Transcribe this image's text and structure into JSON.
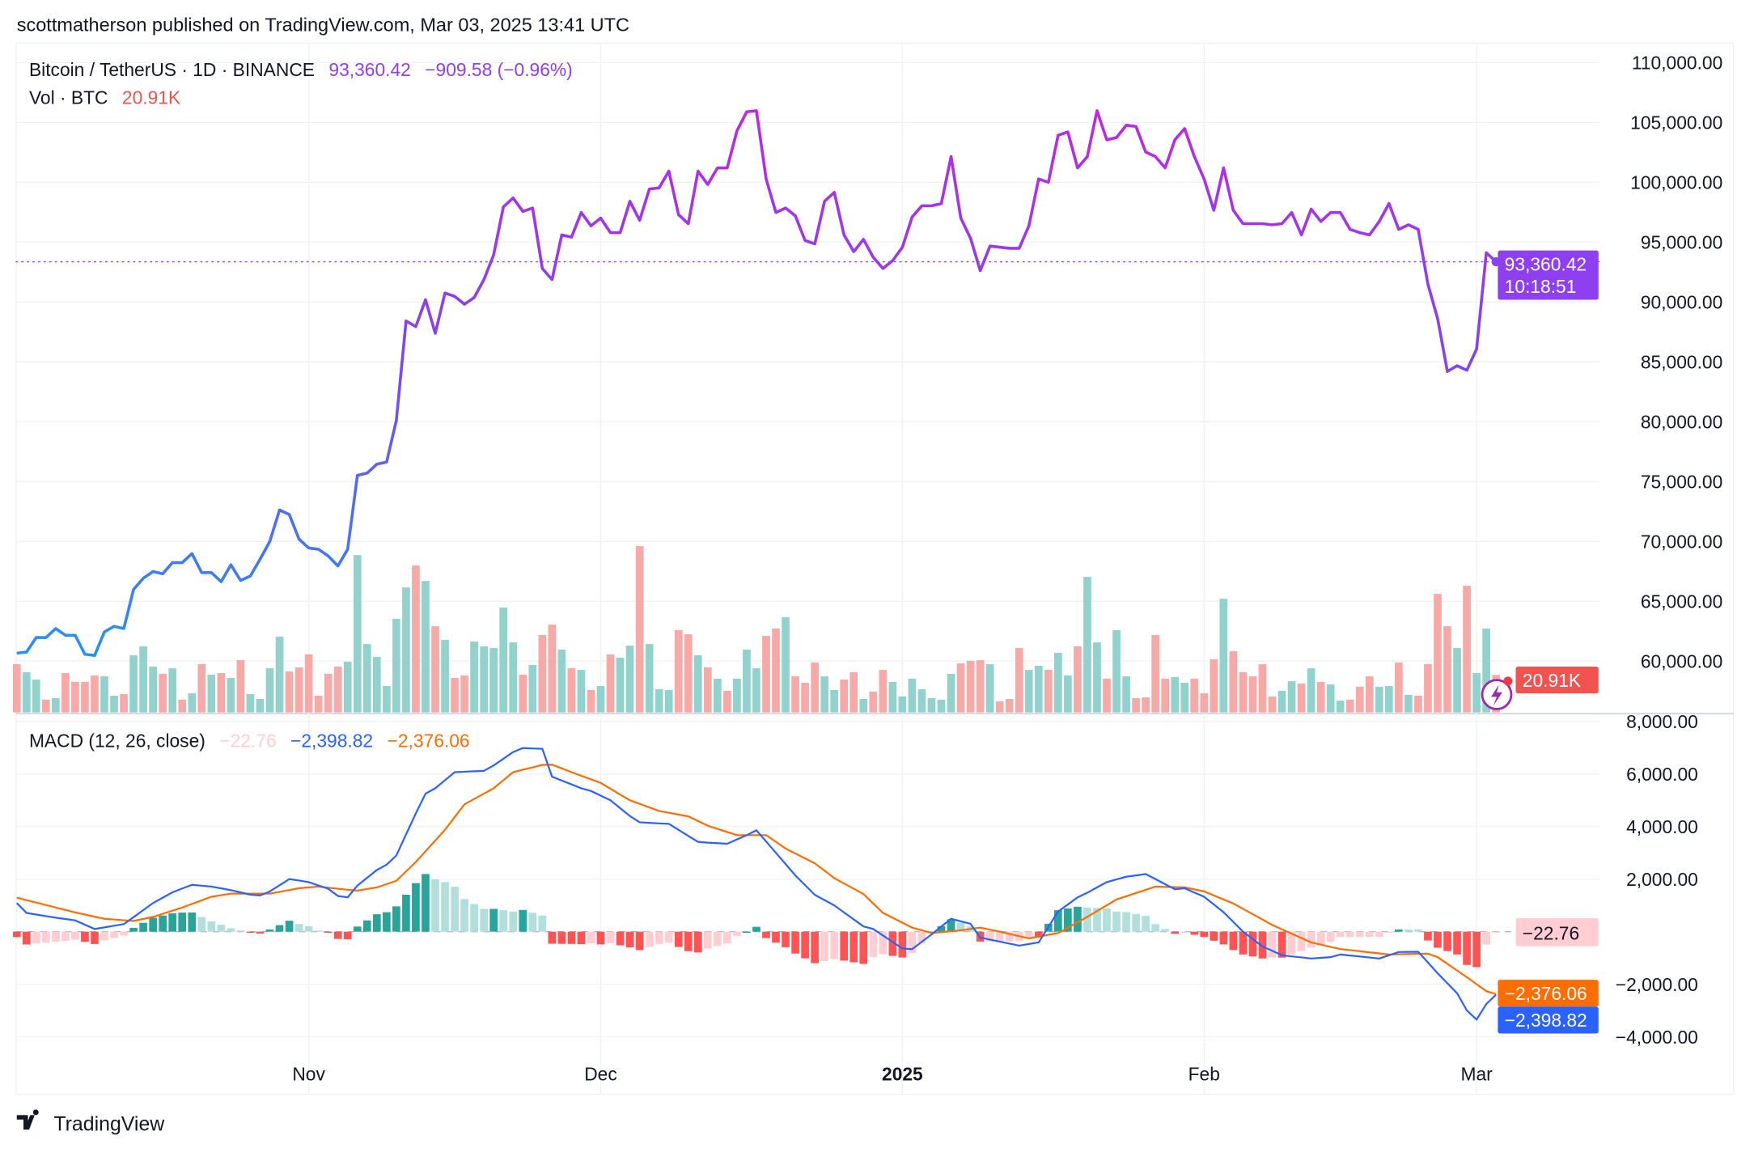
{
  "header": {
    "published": "scottmatherson published on TradingView.com, Mar 03, 2025 13:41 UTC"
  },
  "legend": {
    "symbol": "Bitcoin / TetherUS · 1D · BINANCE",
    "last": "93,360.42",
    "change": "−909.58 (−0.96%)",
    "volume_label": "Vol · BTC",
    "volume_value": "20.91K",
    "macd_label": "MACD (12, 26, close)",
    "macd_hist": "−22.76",
    "macd_line": "−2,398.82",
    "macd_signal": "−2,376.06"
  },
  "badges": {
    "price": "93,360.42",
    "countdown": "10:18:51",
    "volume": "20.91K",
    "hist": "−22.76",
    "signal": "−2,376.06",
    "macd": "−2,398.82"
  },
  "footer": {
    "brand": "TradingView"
  },
  "colors": {
    "price_low": "#2196F3",
    "price_mid": "#7E45F2",
    "price_high": "#C026E6",
    "price_badge": "#8E3FF0",
    "volume_up": "#92D2CC",
    "volume_down": "#F7A9A7",
    "volume_badge": "#F05350",
    "macd_line": "#2962FF",
    "signal_line": "#FF6D00",
    "hist_up_strong": "#26A69A",
    "hist_up_weak": "#B2DFDB",
    "hist_down_strong": "#FF5252",
    "hist_down_weak": "#FFCDD2"
  },
  "chart_data": {
    "type": "line",
    "symbol": "BTCUSDT",
    "interval": "1D",
    "price_axis": {
      "tick_labels": [
        "110,000.00",
        "105,000.00",
        "100,000.00",
        "95,000.00",
        "90,000.00",
        "85,000.00",
        "80,000.00",
        "75,000.00",
        "70,000.00",
        "65,000.00",
        "60,000.00"
      ]
    },
    "macd_axis": {
      "tick_labels": [
        "8,000.00",
        "6,000.00",
        "4,000.00",
        "2,000.00",
        "−2,000.00",
        "−4,000.00"
      ]
    },
    "time_axis": [
      {
        "label": "Nov",
        "date": "2024-11-01",
        "bold": false
      },
      {
        "label": "Dec",
        "date": "2024-12-01",
        "bold": false
      },
      {
        "label": "2025",
        "date": "2025-01-01",
        "bold": true
      },
      {
        "label": "Feb",
        "date": "2025-02-01",
        "bold": false
      },
      {
        "label": "Mar",
        "date": "2025-03-01",
        "bold": false
      }
    ],
    "grid": true,
    "dates": [
      "2024-10-02",
      "2024-10-03",
      "2024-10-04",
      "2024-10-05",
      "2024-10-06",
      "2024-10-07",
      "2024-10-08",
      "2024-10-09",
      "2024-10-10",
      "2024-10-11",
      "2024-10-12",
      "2024-10-13",
      "2024-10-14",
      "2024-10-15",
      "2024-10-16",
      "2024-10-17",
      "2024-10-18",
      "2024-10-19",
      "2024-10-20",
      "2024-10-21",
      "2024-10-22",
      "2024-10-23",
      "2024-10-24",
      "2024-10-25",
      "2024-10-26",
      "2024-10-27",
      "2024-10-28",
      "2024-10-29",
      "2024-10-30",
      "2024-10-31",
      "2024-11-01",
      "2024-11-02",
      "2024-11-03",
      "2024-11-04",
      "2024-11-05",
      "2024-11-06",
      "2024-11-07",
      "2024-11-08",
      "2024-11-09",
      "2024-11-10",
      "2024-11-11",
      "2024-11-12",
      "2024-11-13",
      "2024-11-14",
      "2024-11-15",
      "2024-11-16",
      "2024-11-17",
      "2024-11-18",
      "2024-11-19",
      "2024-11-20",
      "2024-11-21",
      "2024-11-22",
      "2024-11-23",
      "2024-11-24",
      "2024-11-25",
      "2024-11-26",
      "2024-11-27",
      "2024-11-28",
      "2024-11-29",
      "2024-11-30",
      "2024-12-01",
      "2024-12-02",
      "2024-12-03",
      "2024-12-04",
      "2024-12-05",
      "2024-12-06",
      "2024-12-07",
      "2024-12-08",
      "2024-12-09",
      "2024-12-10",
      "2024-12-11",
      "2024-12-12",
      "2024-12-13",
      "2024-12-14",
      "2024-12-15",
      "2024-12-16",
      "2024-12-17",
      "2024-12-18",
      "2024-12-19",
      "2024-12-20",
      "2024-12-21",
      "2024-12-22",
      "2024-12-23",
      "2024-12-24",
      "2024-12-25",
      "2024-12-26",
      "2024-12-27",
      "2024-12-28",
      "2024-12-29",
      "2024-12-30",
      "2024-12-31",
      "2025-01-01",
      "2025-01-02",
      "2025-01-03",
      "2025-01-04",
      "2025-01-05",
      "2025-01-06",
      "2025-01-07",
      "2025-01-08",
      "2025-01-09",
      "2025-01-10",
      "2025-01-11",
      "2025-01-12",
      "2025-01-13",
      "2025-01-14",
      "2025-01-15",
      "2025-01-16",
      "2025-01-17",
      "2025-01-18",
      "2025-01-19",
      "2025-01-20",
      "2025-01-21",
      "2025-01-22",
      "2025-01-23",
      "2025-01-24",
      "2025-01-25",
      "2025-01-26",
      "2025-01-27",
      "2025-01-28",
      "2025-01-29",
      "2025-01-30",
      "2025-01-31",
      "2025-02-01",
      "2025-02-02",
      "2025-02-03",
      "2025-02-04",
      "2025-02-05",
      "2025-02-06",
      "2025-02-07",
      "2025-02-08",
      "2025-02-09",
      "2025-02-10",
      "2025-02-11",
      "2025-02-12",
      "2025-02-13",
      "2025-02-14",
      "2025-02-15",
      "2025-02-16",
      "2025-02-17",
      "2025-02-18",
      "2025-02-19",
      "2025-02-20",
      "2025-02-21",
      "2025-02-22",
      "2025-02-23",
      "2025-02-24",
      "2025-02-25",
      "2025-02-26",
      "2025-02-27",
      "2025-02-28",
      "2025-03-01",
      "2025-03-02",
      "2025-03-03"
    ],
    "close": [
      60650,
      60750,
      61960,
      61960,
      62710,
      62150,
      62150,
      60560,
      60470,
      62430,
      62900,
      62710,
      65980,
      66920,
      67480,
      67290,
      68220,
      68220,
      68970,
      67380,
      67380,
      66630,
      68040,
      66730,
      67100,
      68500,
      70000,
      72620,
      72240,
      70190,
      69440,
      69340,
      68780,
      67940,
      69340,
      75510,
      75700,
      76450,
      76630,
      80090,
      88410,
      87940,
      90190,
      87380,
      90750,
      90470,
      89810,
      90370,
      91870,
      93930,
      97940,
      98690,
      97570,
      97850,
      92800,
      91870,
      95610,
      95420,
      97480,
      96360,
      97010,
      95790,
      95790,
      98410,
      96820,
      99440,
      99530,
      100930,
      97290,
      96540,
      100930,
      99810,
      101210,
      101210,
      104300,
      105890,
      105980,
      100280,
      97480,
      97850,
      97200,
      95140,
      94860,
      98410,
      99160,
      95610,
      94210,
      95230,
      93740,
      92800,
      93460,
      94580,
      97100,
      98040,
      98040,
      98220,
      102150,
      97010,
      95330,
      92620,
      94670,
      94580,
      94490,
      94490,
      96360,
      100280,
      100000,
      103930,
      104210,
      101210,
      102150,
      105980,
      103550,
      103740,
      104770,
      104670,
      102520,
      102150,
      101210,
      103550,
      104490,
      102150,
      100280,
      97660,
      101210,
      97660,
      96540,
      96540,
      96540,
      96450,
      96540,
      97480,
      95610,
      97760,
      96730,
      97480,
      97480,
      96070,
      95790,
      95610,
      96730,
      98220,
      96070,
      96450,
      96070,
      91490,
      88600,
      84200,
      84670,
      84300,
      86070,
      94110,
      93360.42
    ],
    "last_price": 93360.42,
    "volume_k": [
      26.9,
      22.4,
      18.3,
      7.1,
      8.0,
      21.9,
      17.0,
      17.0,
      20.6,
      20.1,
      9.3,
      10.2,
      31.8,
      36.8,
      25.5,
      21.5,
      24.6,
      7.1,
      10.7,
      26.9,
      21.0,
      21.9,
      19.2,
      29.1,
      10.2,
      7.5,
      24.6,
      42.2,
      22.8,
      25.1,
      32.3,
      9.3,
      21.5,
      25.5,
      28.2,
      87.6,
      38.1,
      30.9,
      14.7,
      52.1,
      69.6,
      81.8,
      73.2,
      48.0,
      40.4,
      19.2,
      20.6,
      39.5,
      36.8,
      35.9,
      58.4,
      39.0,
      21.0,
      26.4,
      43.1,
      48.9,
      35.0,
      24.6,
      23.7,
      12.5,
      14.7,
      32.3,
      30.5,
      37.2,
      92.6,
      38.1,
      12.9,
      12.5,
      45.8,
      43.5,
      31.8,
      25.1,
      18.8,
      12.0,
      18.8,
      35.0,
      24.6,
      42.6,
      46.7,
      53.0,
      20.1,
      16.5,
      27.8,
      20.1,
      12.5,
      18.3,
      22.4,
      7.5,
      11.6,
      23.7,
      17.0,
      8.9,
      18.8,
      12.9,
      8.0,
      7.1,
      21.5,
      27.3,
      28.7,
      29.1,
      26.9,
      6.2,
      7.5,
      35.9,
      23.7,
      26.0,
      23.7,
      33.2,
      20.6,
      36.8,
      75.5,
      39.0,
      18.8,
      45.8,
      20.1,
      8.0,
      8.4,
      43.1,
      18.8,
      19.7,
      16.5,
      18.8,
      10.7,
      29.6,
      63.3,
      34.1,
      22.4,
      20.1,
      26.9,
      8.9,
      12.0,
      17.4,
      16.1,
      24.6,
      17.0,
      15.6,
      6.6,
      7.1,
      14.3,
      20.1,
      14.3,
      14.7,
      27.8,
      9.8,
      9.3,
      26.9,
      66.0,
      48.0,
      35.9,
      70.5,
      21.9,
      46.7,
      20.91
    ],
    "volume_direction": [
      "down",
      "up",
      "up",
      "down",
      "up",
      "down",
      "down",
      "down",
      "down",
      "up",
      "up",
      "down",
      "up",
      "up",
      "up",
      "down",
      "up",
      "down",
      "up",
      "down",
      "up",
      "down",
      "up",
      "down",
      "up",
      "up",
      "up",
      "up",
      "down",
      "down",
      "down",
      "down",
      "down",
      "down",
      "up",
      "up",
      "up",
      "up",
      "up",
      "up",
      "up",
      "down",
      "up",
      "down",
      "up",
      "down",
      "down",
      "up",
      "up",
      "up",
      "up",
      "up",
      "down",
      "up",
      "down",
      "down",
      "up",
      "down",
      "up",
      "down",
      "up",
      "down",
      "up",
      "up",
      "down",
      "up",
      "up",
      "up",
      "down",
      "down",
      "up",
      "down",
      "up",
      "down",
      "up",
      "up",
      "up",
      "down",
      "down",
      "up",
      "down",
      "down",
      "down",
      "up",
      "up",
      "down",
      "down",
      "up",
      "down",
      "down",
      "up",
      "up",
      "up",
      "up",
      "up",
      "up",
      "up",
      "down",
      "down",
      "down",
      "up",
      "down",
      "down",
      "down",
      "up",
      "up",
      "down",
      "up",
      "up",
      "down",
      "up",
      "up",
      "down",
      "up",
      "up",
      "down",
      "down",
      "down",
      "down",
      "up",
      "up",
      "down",
      "down",
      "down",
      "up",
      "down",
      "down",
      "down",
      "down",
      "down",
      "up",
      "up",
      "down",
      "up",
      "down",
      "up",
      "up",
      "down",
      "down",
      "down",
      "up",
      "up",
      "down",
      "up",
      "down",
      "down",
      "down",
      "down",
      "up",
      "down",
      "up",
      "up",
      "down"
    ],
    "macd": {
      "fast": 12,
      "slow": 26,
      "source": "close",
      "macd_line": [
        [
          "2024-10-02",
          1090
        ],
        [
          "2024-10-03",
          714
        ],
        [
          "2024-10-06",
          530
        ],
        [
          "2024-10-08",
          428
        ],
        [
          "2024-10-10",
          102
        ],
        [
          "2024-10-13",
          286
        ],
        [
          "2024-10-16",
          1090
        ],
        [
          "2024-10-18",
          1500
        ],
        [
          "2024-10-20",
          1785
        ],
        [
          "2024-10-22",
          1714
        ],
        [
          "2024-10-24",
          1580
        ],
        [
          "2024-10-26",
          1408
        ],
        [
          "2024-10-27",
          1377
        ],
        [
          "2024-10-28",
          1530
        ],
        [
          "2024-10-30",
          2000
        ],
        [
          "2024-11-01",
          1887
        ],
        [
          "2024-11-03",
          1632
        ],
        [
          "2024-11-04",
          1357
        ],
        [
          "2024-11-05",
          1306
        ],
        [
          "2024-11-06",
          1754
        ],
        [
          "2024-11-08",
          2346
        ],
        [
          "2024-11-09",
          2550
        ],
        [
          "2024-11-10",
          2900
        ],
        [
          "2024-11-12",
          4500
        ],
        [
          "2024-11-13",
          5253
        ],
        [
          "2024-11-14",
          5457
        ],
        [
          "2024-11-16",
          6069
        ],
        [
          "2024-11-19",
          6120
        ],
        [
          "2024-11-20",
          6324
        ],
        [
          "2024-11-22",
          6834
        ],
        [
          "2024-11-23",
          6987
        ],
        [
          "2024-11-25",
          6956
        ],
        [
          "2024-11-26",
          5896
        ],
        [
          "2024-11-29",
          5457
        ],
        [
          "2024-11-30",
          5355
        ],
        [
          "2024-12-02",
          4998
        ],
        [
          "2024-12-04",
          4400
        ],
        [
          "2024-12-05",
          4162
        ],
        [
          "2024-12-08",
          4100
        ],
        [
          "2024-12-11",
          3417
        ],
        [
          "2024-12-12",
          3386
        ],
        [
          "2024-12-14",
          3346
        ],
        [
          "2024-12-16",
          3672
        ],
        [
          "2024-12-17",
          3856
        ],
        [
          "2024-12-19",
          3000
        ],
        [
          "2024-12-21",
          2142
        ],
        [
          "2024-12-23",
          1400
        ],
        [
          "2024-12-25",
          1000
        ],
        [
          "2024-12-28",
          200
        ],
        [
          "2024-12-29",
          102
        ],
        [
          "2025-01-01",
          -640
        ],
        [
          "2025-01-02",
          -663
        ],
        [
          "2025-01-04",
          -102
        ],
        [
          "2025-01-06",
          490
        ],
        [
          "2025-01-08",
          300
        ],
        [
          "2025-01-09",
          -224
        ],
        [
          "2025-01-13",
          -530
        ],
        [
          "2025-01-15",
          -408
        ],
        [
          "2025-01-17",
          765
        ],
        [
          "2025-01-19",
          1306
        ],
        [
          "2025-01-20",
          1479
        ],
        [
          "2025-01-22",
          1887
        ],
        [
          "2025-01-24",
          2091
        ],
        [
          "2025-01-26",
          2193
        ],
        [
          "2025-01-29",
          1612
        ],
        [
          "2025-01-30",
          1652
        ],
        [
          "2025-02-01",
          1326
        ],
        [
          "2025-02-03",
          740
        ],
        [
          "2025-02-05",
          0
        ],
        [
          "2025-02-07",
          -561
        ],
        [
          "2025-02-09",
          -898
        ],
        [
          "2025-02-12",
          -1020
        ],
        [
          "2025-02-14",
          -969
        ],
        [
          "2025-02-15",
          -867
        ],
        [
          "2025-02-19",
          -1020
        ],
        [
          "2025-02-21",
          -775
        ],
        [
          "2025-02-23",
          -765
        ],
        [
          "2025-02-25",
          -1581
        ],
        [
          "2025-02-27",
          -2346
        ],
        [
          "2025-02-28",
          -3000
        ],
        [
          "2025-03-01",
          -3346
        ],
        [
          "2025-03-02",
          -2754
        ],
        [
          "2025-03-03",
          -2398.82
        ]
      ],
      "signal_line": [
        [
          "2024-10-02",
          1295
        ],
        [
          "2024-10-06",
          918
        ],
        [
          "2024-10-08",
          734
        ],
        [
          "2024-10-11",
          490
        ],
        [
          "2024-10-14",
          408
        ],
        [
          "2024-10-16",
          561
        ],
        [
          "2024-10-19",
          918
        ],
        [
          "2024-10-22",
          1326
        ],
        [
          "2024-10-24",
          1448
        ],
        [
          "2024-10-28",
          1448
        ],
        [
          "2024-10-31",
          1652
        ],
        [
          "2024-11-02",
          1714
        ],
        [
          "2024-11-04",
          1632
        ],
        [
          "2024-11-06",
          1560
        ],
        [
          "2024-11-08",
          1683
        ],
        [
          "2024-11-10",
          1938
        ],
        [
          "2024-11-12",
          2652
        ],
        [
          "2024-11-15",
          3876
        ],
        [
          "2024-11-17",
          4845
        ],
        [
          "2024-11-20",
          5457
        ],
        [
          "2024-11-22",
          6069
        ],
        [
          "2024-11-25",
          6344
        ],
        [
          "2024-11-26",
          6355
        ],
        [
          "2024-11-28",
          6069
        ],
        [
          "2024-12-01",
          5661
        ],
        [
          "2024-12-04",
          4998
        ],
        [
          "2024-12-07",
          4590
        ],
        [
          "2024-12-10",
          4386
        ],
        [
          "2024-12-12",
          4029
        ],
        [
          "2024-12-15",
          3672
        ],
        [
          "2024-12-18",
          3672
        ],
        [
          "2024-12-20",
          3162
        ],
        [
          "2024-12-23",
          2600
        ],
        [
          "2024-12-25",
          2040
        ],
        [
          "2024-12-28",
          1428
        ],
        [
          "2024-12-30",
          714
        ],
        [
          "2025-01-02",
          153
        ],
        [
          "2025-01-04",
          -51
        ],
        [
          "2025-01-07",
          51
        ],
        [
          "2025-01-09",
          153
        ],
        [
          "2025-01-11",
          0
        ],
        [
          "2025-01-14",
          -255
        ],
        [
          "2025-01-17",
          -51
        ],
        [
          "2025-01-20",
          561
        ],
        [
          "2025-01-23",
          1224
        ],
        [
          "2025-01-27",
          1714
        ],
        [
          "2025-01-30",
          1683
        ],
        [
          "2025-02-01",
          1530
        ],
        [
          "2025-02-04",
          1071
        ],
        [
          "2025-02-08",
          255
        ],
        [
          "2025-02-12",
          -408
        ],
        [
          "2025-02-15",
          -663
        ],
        [
          "2025-02-20",
          -867
        ],
        [
          "2025-02-24",
          -837
        ],
        [
          "2025-02-25",
          -969
        ],
        [
          "2025-02-28",
          -1734
        ],
        [
          "2025-03-02",
          -2264
        ],
        [
          "2025-03-03",
          -2376.06
        ]
      ],
      "histogram_last": -22.76
    }
  }
}
